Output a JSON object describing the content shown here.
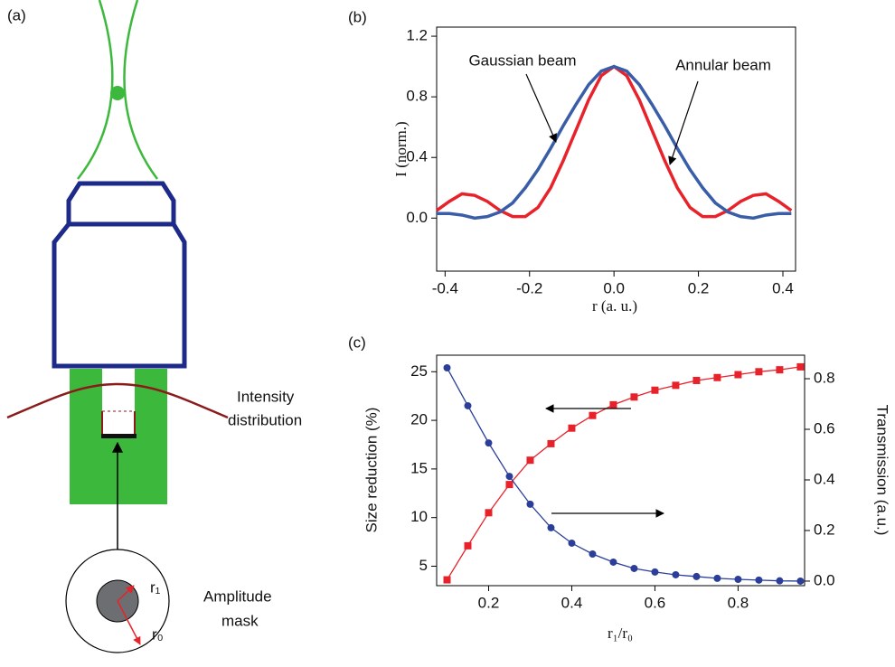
{
  "diagram": {
    "label": "(a)",
    "intensity_label": [
      "Intensity",
      "distribution"
    ],
    "mask_label": [
      "Amplitude",
      "mask"
    ],
    "r1": "r₁",
    "r0": "r₀"
  },
  "chart_data": [
    {
      "type": "line",
      "label": "(b)",
      "xlabel": "r (a. u.)",
      "ylabel": "I (norm.)",
      "x": [
        -0.42,
        -0.39,
        -0.36,
        -0.33,
        -0.3,
        -0.27,
        -0.24,
        -0.21,
        -0.18,
        -0.15,
        -0.12,
        -0.09,
        -0.06,
        -0.03,
        0,
        0.03,
        0.06,
        0.09,
        0.12,
        0.15,
        0.18,
        0.21,
        0.24,
        0.27,
        0.3,
        0.33,
        0.36,
        0.39,
        0.42
      ],
      "series": [
        {
          "color": "#e8222a",
          "values": [
            0.05,
            0.11,
            0.16,
            0.15,
            0.11,
            0.05,
            0.01,
            0.01,
            0.07,
            0.2,
            0.38,
            0.58,
            0.78,
            0.94,
            1.0,
            0.94,
            0.78,
            0.58,
            0.38,
            0.2,
            0.07,
            0.01,
            0.01,
            0.05,
            0.11,
            0.15,
            0.16,
            0.11,
            0.05
          ]
        },
        {
          "color": "#3a5da8",
          "values": [
            0.03,
            0.03,
            0.02,
            0.0,
            0.01,
            0.04,
            0.1,
            0.2,
            0.32,
            0.46,
            0.61,
            0.75,
            0.88,
            0.97,
            1.0,
            0.97,
            0.88,
            0.75,
            0.61,
            0.46,
            0.32,
            0.2,
            0.1,
            0.04,
            0.01,
            0.0,
            0.02,
            0.03,
            0.03
          ]
        }
      ],
      "annotations": [
        "Gaussian beam",
        "Annular beam"
      ],
      "xlim": [
        -0.42,
        0.43
      ],
      "xticks": [
        -0.4,
        -0.2,
        {
          "value": 0,
          "label": "0.0"
        },
        0.2,
        0.4
      ],
      "ylim": [
        -0.35,
        1.26
      ],
      "yticks": [
        {
          "value": 0,
          "label": "0.0"
        },
        0.4,
        0.8,
        1.2
      ]
    },
    {
      "type": "line",
      "label": "(c)",
      "xlabel": "r₁/r₀",
      "ylabel": "Size reduction (%)",
      "y2label": "Transmission (a.u.)",
      "x": [
        0.1,
        0.15,
        0.2,
        0.25,
        0.3,
        0.35,
        0.4,
        0.45,
        0.5,
        0.55,
        0.6,
        0.65,
        0.7,
        0.75,
        0.8,
        0.85,
        0.9,
        0.95
      ],
      "series": [
        {
          "color": "#e8222a",
          "marker": "square",
          "values": [
            3.6,
            7.1,
            10.5,
            13.4,
            15.9,
            17.6,
            19.2,
            20.5,
            21.6,
            22.4,
            23.1,
            23.6,
            24.1,
            24.4,
            24.7,
            25.0,
            25.2,
            25.5
          ]
        },
        {
          "color": "#2b3f9a",
          "marker": "circle",
          "axis": "y2",
          "values": [
            0.843,
            0.693,
            0.546,
            0.414,
            0.304,
            0.211,
            0.15,
            0.107,
            0.075,
            0.05,
            0.036,
            0.025,
            0.018,
            0.011,
            0.007,
            0.004,
            0.001,
            0.0
          ]
        }
      ],
      "xlim": [
        0.075,
        0.96
      ],
      "xticks": [
        0.2,
        0.4,
        0.6,
        0.8
      ],
      "ylim": [
        3.0,
        26.7
      ],
      "yticks": [
        5,
        10,
        15,
        20,
        25
      ],
      "y2lim": [
        -0.018,
        0.893
      ],
      "y2ticks": [
        {
          "value": 0,
          "label": "0.0"
        },
        0.2,
        0.4,
        0.6,
        0.8
      ]
    }
  ]
}
